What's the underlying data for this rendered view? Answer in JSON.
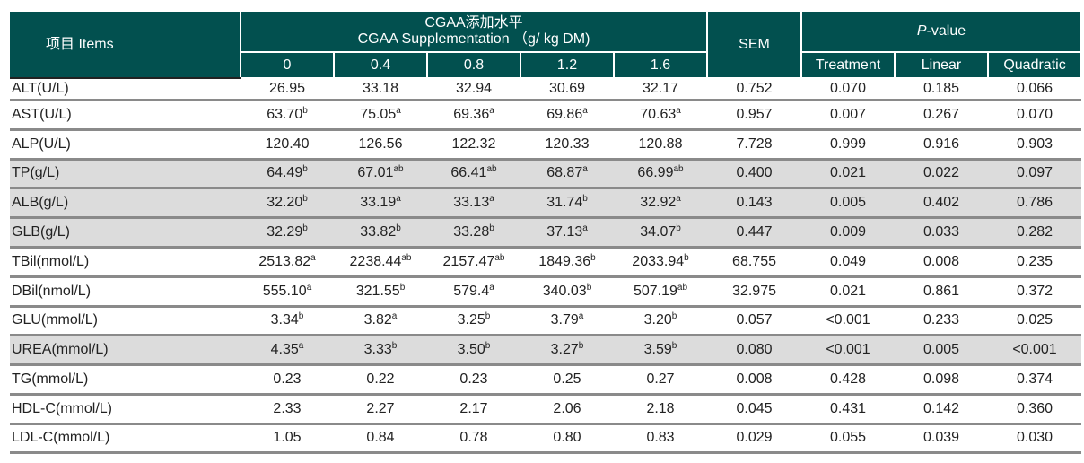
{
  "header": {
    "items": "项目 Items",
    "group_cn": "CGAA添加水平",
    "group_en": "CGAA Supplementation （g/ kg DM)",
    "levels": [
      "0",
      "0.4",
      "0.8",
      "1.2",
      "1.6"
    ],
    "sem": "SEM",
    "pvalue_italic": "P",
    "pvalue_rest": "-value",
    "pcols": [
      "Treatment",
      "Linear",
      "Quadratic"
    ]
  },
  "rows": [
    {
      "label": "ALT(U/L)",
      "gray": false,
      "cells": [
        [
          "26.95",
          ""
        ],
        [
          "33.18",
          ""
        ],
        [
          "32.94",
          ""
        ],
        [
          "30.69",
          ""
        ],
        [
          "32.17",
          ""
        ]
      ],
      "sem": "0.752",
      "p": [
        "0.070",
        "0.185",
        "0.066"
      ]
    },
    {
      "label": "AST(U/L)",
      "gray": false,
      "cells": [
        [
          "63.70",
          "b"
        ],
        [
          "75.05",
          "a"
        ],
        [
          "69.36",
          "a"
        ],
        [
          "69.86",
          "a"
        ],
        [
          "70.63",
          "a"
        ]
      ],
      "sem": "0.957",
      "p": [
        "0.007",
        "0.267",
        "0.070"
      ]
    },
    {
      "label": "ALP(U/L)",
      "gray": false,
      "cells": [
        [
          "120.40",
          ""
        ],
        [
          "126.56",
          ""
        ],
        [
          "122.32",
          ""
        ],
        [
          "120.33",
          ""
        ],
        [
          "120.88",
          ""
        ]
      ],
      "sem": "7.728",
      "p": [
        "0.999",
        "0.916",
        "0.903"
      ]
    },
    {
      "label": "TP(g/L)",
      "gray": true,
      "cells": [
        [
          "64.49",
          "b"
        ],
        [
          "67.01",
          "ab"
        ],
        [
          "66.41",
          "ab"
        ],
        [
          "68.87",
          "a"
        ],
        [
          "66.99",
          "ab"
        ]
      ],
      "sem": "0.400",
      "p": [
        "0.021",
        "0.022",
        "0.097"
      ]
    },
    {
      "label": "ALB(g/L)",
      "gray": true,
      "cells": [
        [
          "32.20",
          "b"
        ],
        [
          "33.19",
          "a"
        ],
        [
          "33.13",
          "a"
        ],
        [
          "31.74",
          "b"
        ],
        [
          "32.92",
          "a"
        ]
      ],
      "sem": "0.143",
      "p": [
        "0.005",
        "0.402",
        "0.786"
      ]
    },
    {
      "label": "GLB(g/L)",
      "gray": true,
      "cells": [
        [
          "32.29",
          "b"
        ],
        [
          "33.82",
          "b"
        ],
        [
          "33.28",
          "b"
        ],
        [
          "37.13",
          "a"
        ],
        [
          "34.07",
          "b"
        ]
      ],
      "sem": "0.447",
      "p": [
        "0.009",
        "0.033",
        "0.282"
      ]
    },
    {
      "label": "TBil(nmol/L)",
      "gray": false,
      "cells": [
        [
          "2513.82",
          "a"
        ],
        [
          "2238.44",
          "ab"
        ],
        [
          "2157.47",
          "ab"
        ],
        [
          "1849.36",
          "b"
        ],
        [
          "2033.94",
          "b"
        ]
      ],
      "sem": "68.755",
      "p": [
        "0.049",
        "0.008",
        "0.235"
      ]
    },
    {
      "label": "DBil(nmol/L)",
      "gray": false,
      "cells": [
        [
          "555.10",
          "a"
        ],
        [
          "321.55",
          "b"
        ],
        [
          "579.4",
          "a"
        ],
        [
          "340.03",
          "b"
        ],
        [
          "507.19",
          "ab"
        ]
      ],
      "sem": "32.975",
      "p": [
        "0.021",
        "0.861",
        "0.372"
      ]
    },
    {
      "label": "GLU(mmol/L)",
      "gray": false,
      "cells": [
        [
          "3.34",
          "b"
        ],
        [
          "3.82",
          "a"
        ],
        [
          "3.25",
          "b"
        ],
        [
          "3.79",
          "a"
        ],
        [
          "3.20",
          "b"
        ]
      ],
      "sem": "0.057",
      "p": [
        "<0.001",
        "0.233",
        "0.025"
      ]
    },
    {
      "label": "UREA(mmol/L)",
      "gray": true,
      "cells": [
        [
          "4.35",
          "a"
        ],
        [
          "3.33",
          "b"
        ],
        [
          "3.50",
          "b"
        ],
        [
          "3.27",
          "b"
        ],
        [
          "3.59",
          "b"
        ]
      ],
      "sem": "0.080",
      "p": [
        "<0.001",
        "0.005",
        "<0.001"
      ]
    },
    {
      "label": "TG(mmol/L)",
      "gray": false,
      "cells": [
        [
          "0.23",
          ""
        ],
        [
          "0.22",
          ""
        ],
        [
          "0.23",
          ""
        ],
        [
          "0.25",
          ""
        ],
        [
          "0.27",
          ""
        ]
      ],
      "sem": "0.008",
      "p": [
        "0.428",
        "0.098",
        "0.374"
      ]
    },
    {
      "label": "HDL-C(mmol/L)",
      "gray": false,
      "cells": [
        [
          "2.33",
          ""
        ],
        [
          "2.27",
          ""
        ],
        [
          "2.17",
          ""
        ],
        [
          "2.06",
          ""
        ],
        [
          "2.18",
          ""
        ]
      ],
      "sem": "0.045",
      "p": [
        "0.431",
        "0.142",
        "0.360"
      ]
    },
    {
      "label": "LDL-C(mmol/L)",
      "gray": false,
      "cells": [
        [
          "1.05",
          ""
        ],
        [
          "0.84",
          ""
        ],
        [
          "0.78",
          ""
        ],
        [
          "0.80",
          ""
        ],
        [
          "0.83",
          ""
        ]
      ],
      "sem": "0.029",
      "p": [
        "0.055",
        "0.039",
        "0.030"
      ]
    }
  ]
}
